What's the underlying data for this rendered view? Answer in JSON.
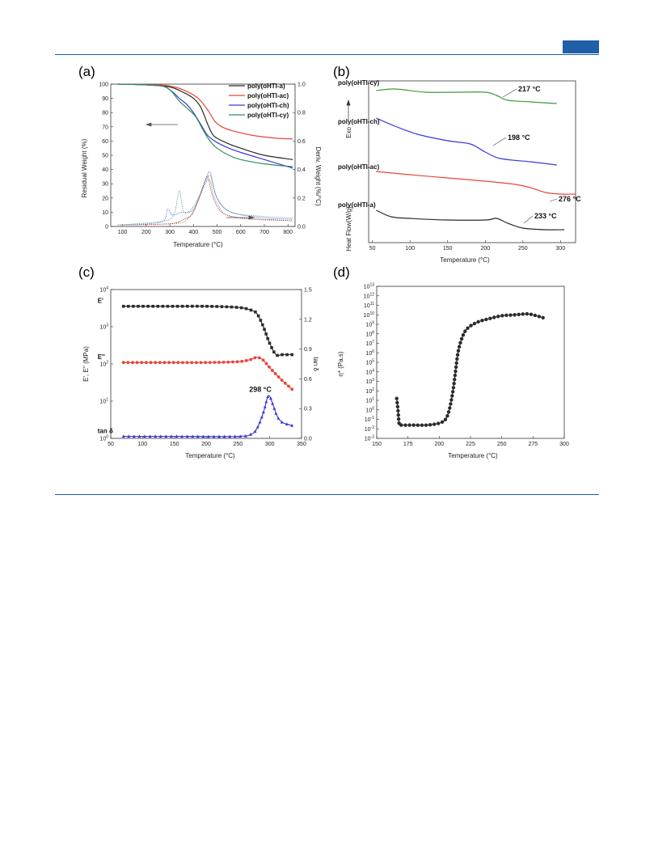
{
  "colors": {
    "accent": "#1f5ea8",
    "black": "#2b2b2b",
    "red": "#e8443a",
    "blue": "#3a3ad8",
    "green": "#2f8f5b",
    "green_b": "#3b9a3b"
  },
  "panels": {
    "a": {
      "label": "(a)",
      "chart_data": {
        "type": "line",
        "xlabel": "Temperature (°C)",
        "ylabel": "Residual Weight (%)",
        "y2label": "Deriv. Weight (%/°C)",
        "xlim": [
          50,
          830
        ],
        "ylim": [
          0,
          100
        ],
        "y2lim": [
          0,
          1.0
        ],
        "xticks": [
          "100",
          "200",
          "300",
          "400",
          "500",
          "600",
          "700",
          "800"
        ],
        "yticks": [
          "0",
          "10",
          "20",
          "30",
          "40",
          "50",
          "60",
          "70",
          "80",
          "90",
          "100"
        ],
        "y2ticks": [
          "0.0",
          "0.2",
          "0.4",
          "0.6",
          "0.8",
          "1.0"
        ],
        "series": [
          {
            "name": "poly(oHTI-a)",
            "color": "black",
            "points": [
              [
                80,
                100
              ],
              [
                200,
                99.5
              ],
              [
                300,
                98
              ],
              [
                360,
                94
              ],
              [
                400,
                90
              ],
              [
                430,
                84
              ],
              [
                460,
                72
              ],
              [
                480,
                65
              ],
              [
                500,
                62
              ],
              [
                550,
                58
              ],
              [
                600,
                55
              ],
              [
                700,
                50
              ],
              [
                820,
                47
              ]
            ]
          },
          {
            "name": "poly(oHTI-ac)",
            "color": "red",
            "points": [
              [
                80,
                100
              ],
              [
                250,
                99.5
              ],
              [
                320,
                98
              ],
              [
                370,
                95
              ],
              [
                420,
                90
              ],
              [
                460,
                82
              ],
              [
                490,
                74
              ],
              [
                520,
                70
              ],
              [
                570,
                67
              ],
              [
                650,
                64
              ],
              [
                750,
                62
              ],
              [
                820,
                61.5
              ]
            ]
          },
          {
            "name": "poly(oHTI-ch)",
            "color": "blue",
            "points": [
              [
                80,
                100
              ],
              [
                250,
                99
              ],
              [
                300,
                96
              ],
              [
                340,
                90
              ],
              [
                370,
                86
              ],
              [
                400,
                80
              ],
              [
                430,
                72
              ],
              [
                460,
                64
              ],
              [
                500,
                59
              ],
              [
                550,
                55
              ],
              [
                600,
                52
              ],
              [
                700,
                47
              ],
              [
                820,
                41
              ]
            ]
          },
          {
            "name": "poly(oHTI-cy)",
            "color": "green",
            "points": [
              [
                80,
                100
              ],
              [
                250,
                99
              ],
              [
                300,
                96
              ],
              [
                340,
                88
              ],
              [
                380,
                82
              ],
              [
                410,
                77
              ],
              [
                440,
                68
              ],
              [
                470,
                60
              ],
              [
                500,
                55
              ],
              [
                550,
                50
              ],
              [
                600,
                47
              ],
              [
                700,
                44
              ],
              [
                820,
                42
              ]
            ]
          }
        ],
        "deriv_series": [
          {
            "name": "poly(oHTI-a)",
            "color": "black",
            "points": [
              [
                80,
                0.01
              ],
              [
                300,
                0.02
              ],
              [
                360,
                0.05
              ],
              [
                400,
                0.1
              ],
              [
                440,
                0.28
              ],
              [
                460,
                0.35
              ],
              [
                480,
                0.22
              ],
              [
                520,
                0.1
              ],
              [
                600,
                0.06
              ],
              [
                700,
                0.05
              ],
              [
                820,
                0.04
              ]
            ]
          },
          {
            "name": "poly(oHTI-ac)",
            "color": "red",
            "points": [
              [
                80,
                0.01
              ],
              [
                320,
                0.02
              ],
              [
                380,
                0.06
              ],
              [
                420,
                0.18
              ],
              [
                450,
                0.3
              ],
              [
                470,
                0.32
              ],
              [
                490,
                0.2
              ],
              [
                540,
                0.08
              ],
              [
                650,
                0.05
              ],
              [
                820,
                0.04
              ]
            ]
          },
          {
            "name": "poly(oHTI-ch)",
            "color": "blue",
            "points": [
              [
                80,
                0.01
              ],
              [
                260,
                0.03
              ],
              [
                290,
                0.12
              ],
              [
                310,
                0.08
              ],
              [
                350,
                0.1
              ],
              [
                400,
                0.12
              ],
              [
                450,
                0.32
              ],
              [
                470,
                0.38
              ],
              [
                500,
                0.2
              ],
              [
                560,
                0.1
              ],
              [
                700,
                0.06
              ],
              [
                820,
                0.05
              ]
            ]
          },
          {
            "name": "poly(oHTI-cy)",
            "color": "green",
            "points": [
              [
                80,
                0.01
              ],
              [
                280,
                0.04
              ],
              [
                320,
                0.1
              ],
              [
                340,
                0.25
              ],
              [
                360,
                0.1
              ],
              [
                400,
                0.14
              ],
              [
                450,
                0.3
              ],
              [
                470,
                0.36
              ],
              [
                500,
                0.2
              ],
              [
                560,
                0.1
              ],
              [
                700,
                0.07
              ],
              [
                820,
                0.06
              ]
            ]
          }
        ]
      }
    },
    "b": {
      "label": "(b)",
      "chart_data": {
        "type": "line",
        "xlabel": "Temperature (°C)",
        "ylabel": "Heat Flow(W/g)",
        "ylabel_arrow": "Exo",
        "xlim": [
          45,
          320
        ],
        "xticks": [
          "50",
          "100",
          "150",
          "200",
          "250",
          "300"
        ],
        "series": [
          {
            "name": "poly(oHTI-cy)",
            "color": "green_b",
            "annotation": "217 °C",
            "points": [
              [
                55,
                0.94
              ],
              [
                80,
                0.95
              ],
              [
                120,
                0.93
              ],
              [
                160,
                0.93
              ],
              [
                200,
                0.93
              ],
              [
                215,
                0.91
              ],
              [
                230,
                0.88
              ],
              [
                260,
                0.87
              ],
              [
                295,
                0.86
              ]
            ]
          },
          {
            "name": "poly(oHTI-ch)",
            "color": "blue",
            "annotation": "198 °C",
            "points": [
              [
                55,
                0.77
              ],
              [
                80,
                0.72
              ],
              [
                110,
                0.67
              ],
              [
                150,
                0.63
              ],
              [
                180,
                0.61
              ],
              [
                200,
                0.56
              ],
              [
                220,
                0.52
              ],
              [
                260,
                0.5
              ],
              [
                295,
                0.48
              ]
            ]
          },
          {
            "name": "poly(oHTI-ac)",
            "color": "red",
            "annotation": "276 °C",
            "points": [
              [
                55,
                0.44
              ],
              [
                100,
                0.42
              ],
              [
                150,
                0.4
              ],
              [
                200,
                0.38
              ],
              [
                240,
                0.36
              ],
              [
                260,
                0.34
              ],
              [
                280,
                0.31
              ],
              [
                300,
                0.3
              ],
              [
                320,
                0.3
              ]
            ]
          },
          {
            "name": "poly(oHTI-a)",
            "color": "black",
            "annotation": "233 °C",
            "points": [
              [
                55,
                0.2
              ],
              [
                75,
                0.16
              ],
              [
                100,
                0.15
              ],
              [
                150,
                0.14
              ],
              [
                200,
                0.14
              ],
              [
                215,
                0.15
              ],
              [
                230,
                0.12
              ],
              [
                250,
                0.09
              ],
              [
                280,
                0.08
              ],
              [
                305,
                0.08
              ]
            ]
          }
        ]
      }
    },
    "c": {
      "label": "(c)",
      "chart_data": {
        "type": "line",
        "xlabel": "Temperature (°C)",
        "ylabel": "E', E'' (MPa)",
        "y2label": "tan δ",
        "xlim": [
          50,
          350
        ],
        "ylim_log10": [
          0,
          4
        ],
        "y2lim": [
          0,
          1.5
        ],
        "xticks": [
          "50",
          "100",
          "150",
          "200",
          "250",
          "300",
          "350"
        ],
        "yticks": [
          "10^0",
          "10^1",
          "10^2",
          "10^3",
          "10^4"
        ],
        "y2ticks": [
          "0.0",
          "0.3",
          "0.6",
          "0.9",
          "1.2",
          "1.5"
        ],
        "annotation": "298 °C",
        "series": [
          {
            "name": "E'",
            "color": "black",
            "axis": "left",
            "marker": "square",
            "points": [
              [
                70,
                3.55
              ],
              [
                100,
                3.55
              ],
              [
                150,
                3.55
              ],
              [
                200,
                3.55
              ],
              [
                250,
                3.52
              ],
              [
                270,
                3.45
              ],
              [
                280,
                3.35
              ],
              [
                290,
                3.0
              ],
              [
                300,
                2.55
              ],
              [
                310,
                2.25
              ],
              [
                320,
                2.25
              ],
              [
                335,
                2.25
              ]
            ]
          },
          {
            "name": "E''",
            "color": "red",
            "axis": "left",
            "marker": "circle",
            "points": [
              [
                70,
                2.04
              ],
              [
                100,
                2.04
              ],
              [
                150,
                2.04
              ],
              [
                200,
                2.04
              ],
              [
                250,
                2.06
              ],
              [
                270,
                2.12
              ],
              [
                280,
                2.18
              ],
              [
                290,
                2.1
              ],
              [
                300,
                1.9
              ],
              [
                310,
                1.72
              ],
              [
                320,
                1.55
              ],
              [
                335,
                1.32
              ]
            ]
          },
          {
            "name": "tan δ",
            "color": "blue",
            "axis": "right",
            "marker": "triangle",
            "points": [
              [
                70,
                0.02
              ],
              [
                150,
                0.02
              ],
              [
                250,
                0.02
              ],
              [
                270,
                0.04
              ],
              [
                280,
                0.1
              ],
              [
                290,
                0.26
              ],
              [
                298,
                0.43
              ],
              [
                305,
                0.34
              ],
              [
                312,
                0.22
              ],
              [
                320,
                0.16
              ],
              [
                335,
                0.13
              ]
            ]
          }
        ]
      }
    },
    "d": {
      "label": "(d)",
      "chart_data": {
        "type": "line",
        "xlabel": "Temperature (°C)",
        "ylabel": "η* (Pa.s)",
        "xlim": [
          150,
          300
        ],
        "ylim_log10": [
          -3,
          13
        ],
        "xticks": [
          "150",
          "175",
          "200",
          "225",
          "250",
          "275",
          "300"
        ],
        "yticks": [
          "10^-3",
          "10^-2",
          "10^-1",
          "10^0",
          "10^1",
          "10^2",
          "10^3",
          "10^4",
          "10^5",
          "10^6",
          "10^7",
          "10^8",
          "10^9",
          "10^10",
          "10^11",
          "10^12",
          "10^13"
        ],
        "series": [
          {
            "name": "",
            "color": "black",
            "marker": "circle",
            "points": [
              [
                166,
                1.2
              ],
              [
                167,
                0.0
              ],
              [
                168,
                -1.5
              ],
              [
                170,
                -1.6
              ],
              [
                180,
                -1.6
              ],
              [
                190,
                -1.6
              ],
              [
                200,
                -1.4
              ],
              [
                205,
                -1.0
              ],
              [
                208,
                0.0
              ],
              [
                211,
                2.0
              ],
              [
                213,
                4.0
              ],
              [
                215,
                6.0
              ],
              [
                218,
                7.5
              ],
              [
                222,
                8.5
              ],
              [
                230,
                9.2
              ],
              [
                240,
                9.6
              ],
              [
                250,
                9.9
              ],
              [
                260,
                10.0
              ],
              [
                270,
                10.1
              ],
              [
                275,
                10.0
              ],
              [
                283,
                9.7
              ]
            ]
          }
        ]
      }
    }
  }
}
